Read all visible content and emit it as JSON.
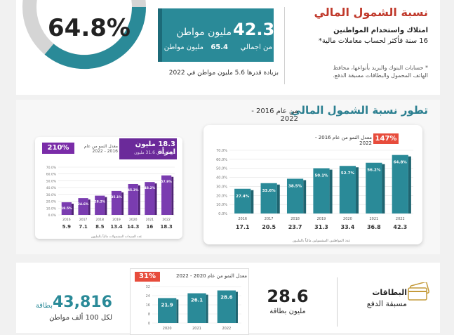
{
  "top": {
    "percentage": "64.8%",
    "citizens_number": "42.3",
    "citizens_label": "مليون مواطن",
    "total_label": "من اجمالي",
    "total_number": "65.4",
    "total_unit": "مليون مواطن",
    "increase_text": "بزيادة قدرها 5.6 مليون مواطن في 2022",
    "title": "نسبة الشمول المالي",
    "subtitle_line1": "امتلاك واستخدام المواطنين",
    "subtitle_line2": "16 سنة فأكثر لحساب معاملات مالية*",
    "note_line1": "* حسابات البنوك والبريد بأنواعها، محافظ",
    "note_line2": "الهاتف المحمول والبطاقات مسبقة الدفع.",
    "colors": {
      "teal": "#2a8a98",
      "red_title": "#c0392b",
      "ring_gray": "#d5d5d5"
    }
  },
  "middle": {
    "title": "تطور نسبة الشمول المالي",
    "title_years": "من عام 2016 - 2022",
    "main_growth_badge": "147%",
    "main_growth_label": "معدل النمو من عام 2016 - 2022",
    "side_growth_badge": "210%",
    "side_growth_label": "معدل النمو من عام 2016 - 2022",
    "side_women_title": "18.3 مليون امرأة",
    "side_women_sub": "من اجمالي 31.6 مليون"
  },
  "chart_data": [
    {
      "type": "bar",
      "categories": [
        "2016",
        "2017",
        "2018",
        "2019",
        "2020",
        "2021",
        "2022"
      ],
      "series": [
        {
          "values": [
            27.4,
            33.6,
            38.5,
            50.1,
            52.7,
            56.2,
            64.8
          ]
        }
      ],
      "value_labels": [
        "27.4%",
        "33.6%",
        "38.5%",
        "50.1%",
        "52.7%",
        "56.2%",
        "64.8%"
      ],
      "below_values": [
        "17.1",
        "20.5",
        "23.7",
        "31.3",
        "33.4",
        "36.8",
        "42.3"
      ],
      "below_caption": "عدد المواطنين المشمولين مالياً بالمليون",
      "yticks": [
        "0.0%",
        "10.0%",
        "20.0%",
        "30.0%",
        "40.0%",
        "50.0%",
        "60.0%",
        "70.0%"
      ],
      "ylim": [
        0,
        70
      ],
      "color": "#2a8a98"
    },
    {
      "type": "bar",
      "categories": [
        "2016",
        "2017",
        "2018",
        "2019",
        "2020",
        "2021",
        "2022"
      ],
      "series": [
        {
          "values": [
            18.5,
            24.6,
            28.2,
            35.1,
            45.3,
            48.2,
            57.9
          ]
        }
      ],
      "value_labels": [
        "18.5%",
        "24.6%",
        "28.2%",
        "35.1%",
        "45.3%",
        "48.2%",
        "57.9%"
      ],
      "below_values": [
        "5.9",
        "7.1",
        "8.5",
        "13.4",
        "14.3",
        "16",
        "18.3"
      ],
      "below_caption": "عدد السيدات المشمولات مالياً بالمليون",
      "yticks": [
        "0.0%",
        "10.0%",
        "20.0%",
        "30.0%",
        "40.0%",
        "50.0%",
        "60.0%",
        "70.0%"
      ],
      "ylim": [
        0,
        70
      ],
      "color": "#7a3cb0"
    },
    {
      "type": "bar",
      "categories": [
        "2020",
        "2021",
        "2022"
      ],
      "series": [
        {
          "values": [
            21.9,
            26.1,
            28.6
          ]
        }
      ],
      "value_labels": [
        "21.9",
        "26.1",
        "28.6"
      ],
      "yticks": [
        "0",
        "8",
        "16",
        "24",
        "32"
      ],
      "ylim": [
        0,
        32
      ],
      "color": "#2a8a98"
    }
  ],
  "bottom": {
    "card_title_line1": "البطاقات",
    "card_title_line2": "مسبقة الدفع",
    "mid_number": "28.6",
    "mid_label": "مليون بطاقة",
    "growth_badge": "31%",
    "growth_label": "معدل النمو من عام 2020 - 2022",
    "left_number": "43,816",
    "left_unit": "بطاقة",
    "left_sub": "لكل 100 ألف مواطن"
  }
}
